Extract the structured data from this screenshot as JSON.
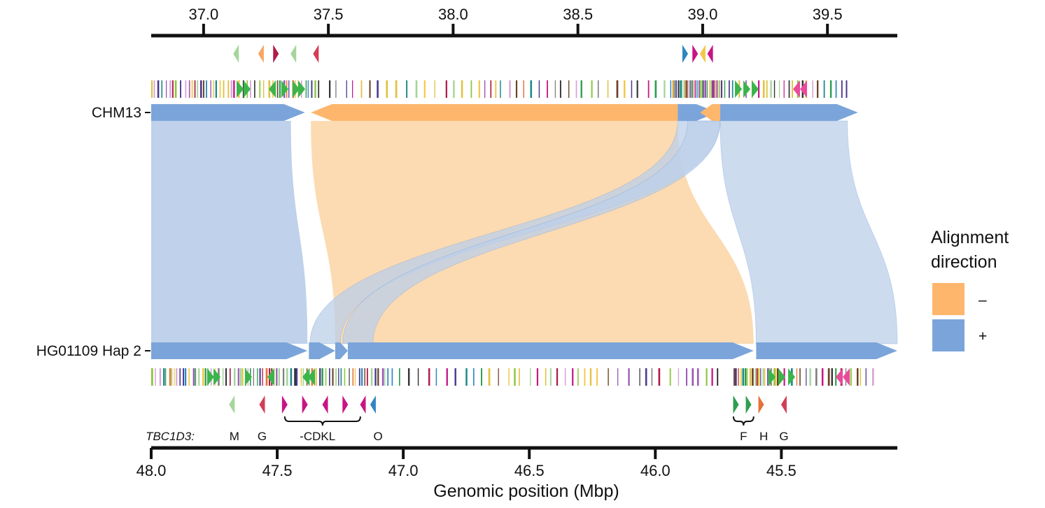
{
  "chart_data": {
    "type": "alignment",
    "xlabel": "Genomic position (Mbp)",
    "top_axis": {
      "ticks": [
        37.0,
        37.5,
        38.0,
        38.5,
        39.0,
        39.5
      ],
      "tick_labels": [
        "37.0",
        "37.5",
        "38.0",
        "38.5",
        "39.0",
        "39.5"
      ],
      "range": [
        36.79,
        39.78
      ]
    },
    "bottom_axis": {
      "ticks": [
        48.0,
        47.5,
        47.0,
        46.5,
        46.0,
        45.5
      ],
      "tick_labels": [
        "48.0",
        "47.5",
        "47.0",
        "46.5",
        "46.0",
        "45.5"
      ],
      "range": [
        48.0,
        45.04
      ]
    },
    "sequences": [
      {
        "name": "CHM13",
        "label": "CHM13"
      },
      {
        "name": "HG01109 Hap 2",
        "label": "HG01109 Hap 2"
      }
    ],
    "legend": {
      "title_line1": "Alignment",
      "title_line2": "direction",
      "placement": "right",
      "entries": [
        {
          "label": "–",
          "color": "#FDB66C"
        },
        {
          "label": "+",
          "color": "#7BA5DA"
        }
      ]
    },
    "colors": {
      "minus": "#FDB66C",
      "plus": "#7BA5DA",
      "minus_ribbon": "#FCD9AE",
      "plus_ribbon": "#BCCFEA",
      "axis": "#111111"
    },
    "alignments": [
      {
        "direction": "+",
        "top": [
          36.79,
          37.35
        ],
        "bottom": [
          48.0,
          47.38
        ]
      },
      {
        "direction": "-",
        "top": [
          37.43,
          38.9
        ],
        "bottom": [
          47.27,
          45.61
        ]
      },
      {
        "direction": "+",
        "top": [
          38.9,
          39.07
        ],
        "bottom": [
          47.37,
          47.25
        ]
      },
      {
        "direction": "+",
        "top": [
          38.94,
          39.07
        ],
        "bottom": [
          47.24,
          47.12
        ]
      },
      {
        "direction": "+",
        "top": [
          39.07,
          39.58
        ],
        "bottom": [
          45.6,
          45.04
        ]
      }
    ],
    "top_genes": [
      {
        "pos": 37.13,
        "strand": "-",
        "color": "#A6D59B"
      },
      {
        "pos": 37.23,
        "strand": "-",
        "color": "#F7A660"
      },
      {
        "pos": 37.29,
        "strand": "+",
        "color": "#B01C4A"
      },
      {
        "pos": 37.36,
        "strand": "-",
        "color": "#A6D59B"
      },
      {
        "pos": 37.45,
        "strand": "-",
        "color": "#D43D55"
      },
      {
        "pos": 38.93,
        "strand": "+",
        "color": "#2E86C1"
      },
      {
        "pos": 38.97,
        "strand": "+",
        "color": "#C71585"
      },
      {
        "pos": 39.0,
        "strand": "-",
        "color": "#F2C84B"
      },
      {
        "pos": 39.03,
        "strand": "-",
        "color": "#C71585"
      }
    ],
    "bottom_genes": [
      {
        "pos": 47.68,
        "strand": "-",
        "color": "#A6D59B"
      },
      {
        "pos": 47.56,
        "strand": "-",
        "color": "#D43D55"
      },
      {
        "pos": 47.47,
        "strand": "+",
        "color": "#C71585"
      },
      {
        "pos": 47.39,
        "strand": "+",
        "color": "#C71585"
      },
      {
        "pos": 47.31,
        "strand": "-",
        "color": "#C71585"
      },
      {
        "pos": 47.23,
        "strand": "+",
        "color": "#C71585"
      },
      {
        "pos": 47.16,
        "strand": "-",
        "color": "#C71585"
      },
      {
        "pos": 47.12,
        "strand": "-",
        "color": "#2E86C1"
      },
      {
        "pos": 45.68,
        "strand": "+",
        "color": "#2E9E4F"
      },
      {
        "pos": 45.63,
        "strand": "+",
        "color": "#2E9E4F"
      },
      {
        "pos": 45.58,
        "strand": "+",
        "color": "#E8703A"
      },
      {
        "pos": 45.49,
        "strand": "-",
        "color": "#D43D55"
      }
    ],
    "gene_labels": {
      "prefix": "TBC1D3:",
      "items": [
        {
          "text": "M",
          "pos": 47.67
        },
        {
          "text": "G",
          "pos": 47.56
        },
        {
          "text": "-CDKL",
          "pos": 47.34
        },
        {
          "text": "O",
          "pos": 47.1
        },
        {
          "text": "F",
          "pos": 45.65
        },
        {
          "text": "H",
          "pos": 45.57
        },
        {
          "text": "G",
          "pos": 45.49
        }
      ],
      "braces": [
        {
          "from": 47.47,
          "to": 47.17
        },
        {
          "from": 45.69,
          "to": 45.61
        }
      ]
    },
    "gene_track_palette": [
      "#8DC63F",
      "#4B3B8F",
      "#2E9E4F",
      "#D8A7D8",
      "#C71585",
      "#7F7F7F",
      "#1F8A8A",
      "#E0C341",
      "#B01C4A",
      "#2E86C1",
      "#9B59B6",
      "#333333",
      "#A6D59B",
      "#E8703A",
      "#6B4226",
      "#F2C84B"
    ]
  }
}
